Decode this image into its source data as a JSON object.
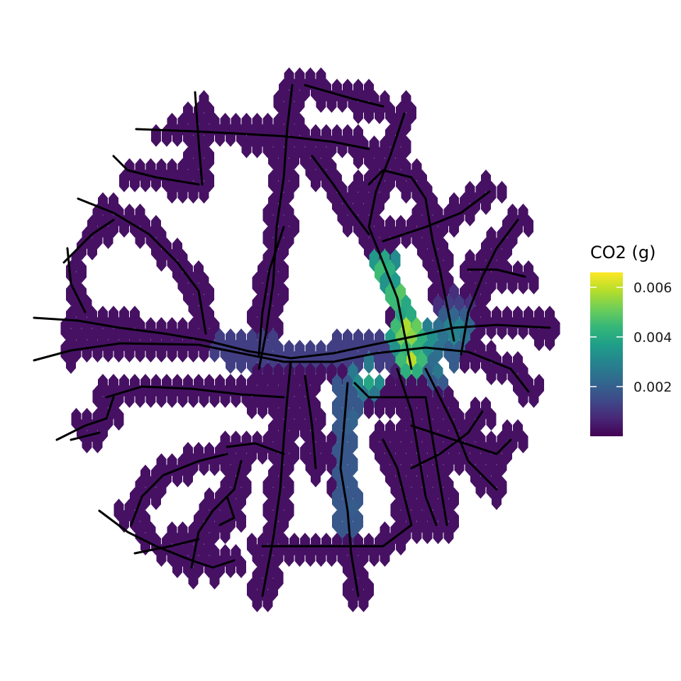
{
  "legend": {
    "title": "CO2 (g)",
    "ticks": [
      "0.006",
      "0.004",
      "0.002"
    ],
    "tick_values": [
      0.006,
      0.004,
      0.002
    ],
    "min": 0.0,
    "max": 0.0066,
    "palette": [
      "#440154",
      "#482878",
      "#3e4a89",
      "#31688e",
      "#26828e",
      "#1f9e89",
      "#35b779",
      "#6ece58",
      "#b5de2b",
      "#fde725"
    ]
  },
  "map_data": {
    "type": "hexbin",
    "cell_fill_note": "viridis color scale by CO2 (g)",
    "road_color": "#000000",
    "hex_color": "#440154",
    "hotspot_values": [
      0.0066,
      0.006,
      0.0055,
      0.005,
      0.0045,
      0.004,
      0.0035,
      0.003,
      0.0025,
      0.002,
      0.0015,
      0.001
    ]
  }
}
